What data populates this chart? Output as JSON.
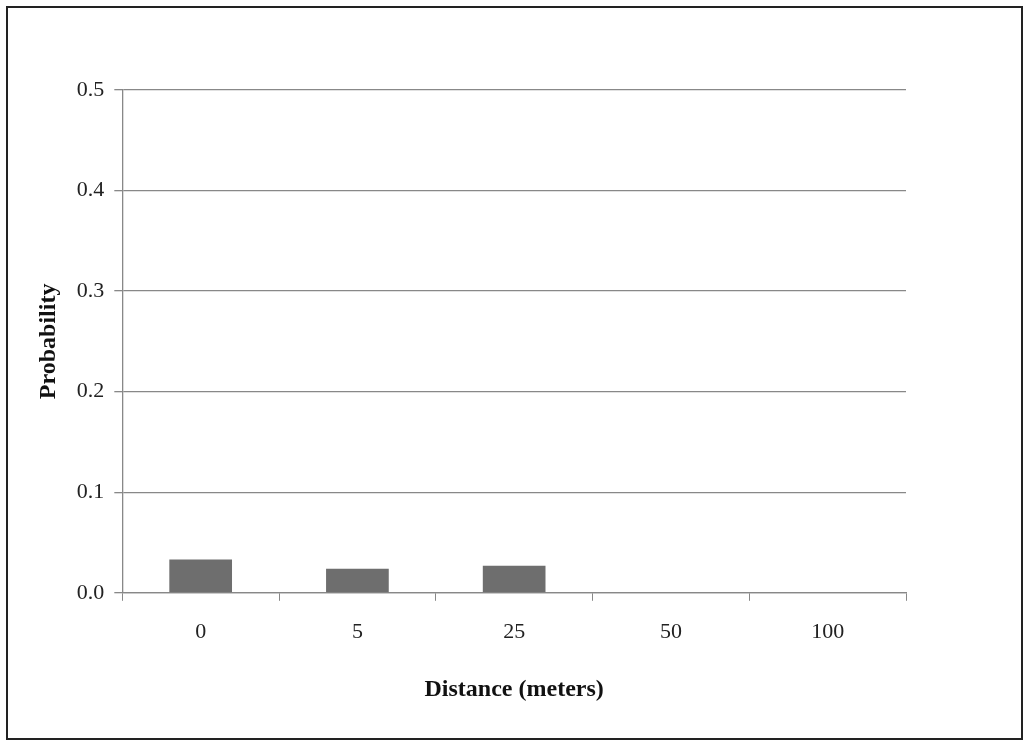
{
  "chart_data": {
    "type": "bar",
    "xlabel": "Distance (meters)",
    "ylabel": "Probability",
    "categories": [
      "0",
      "5",
      "25",
      "50",
      "100"
    ],
    "values": [
      0.033,
      0.024,
      0.027,
      0,
      0
    ],
    "color": "#6e6e6e",
    "ylim": [
      0,
      0.5
    ],
    "yticks": [
      {
        "value": 0,
        "label": "0.0"
      },
      {
        "value": 0.1,
        "label": "0.1"
      },
      {
        "value": 0.2,
        "label": "0.2"
      },
      {
        "value": 0.3,
        "label": "0.3"
      },
      {
        "value": 0.4,
        "label": "0.4"
      },
      {
        "value": 0.5,
        "label": "0.5"
      }
    ],
    "grid": "y",
    "legend": false
  }
}
